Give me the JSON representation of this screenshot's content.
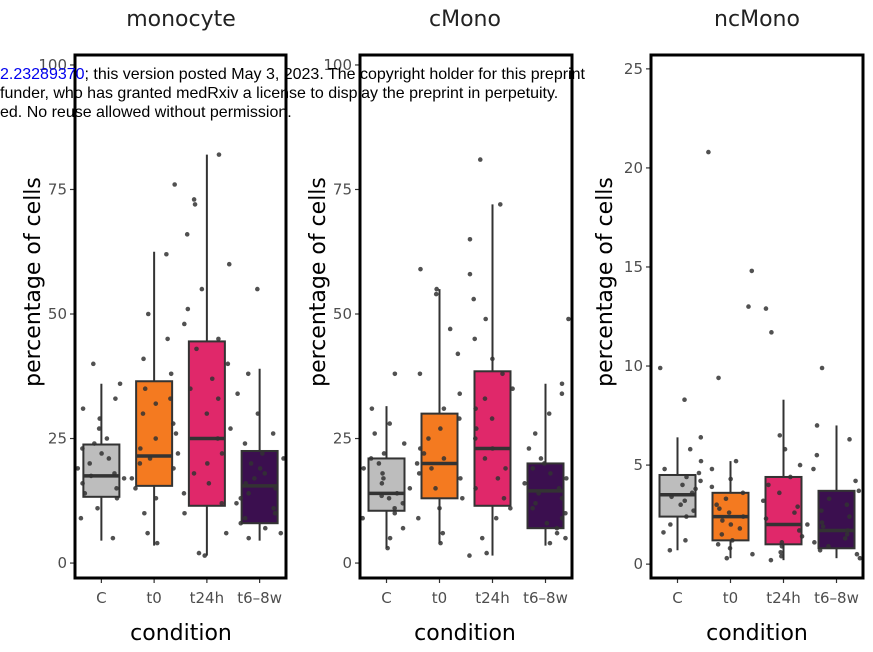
{
  "watermark": {
    "doi_fragment": "2.23289370",
    "line1_rest": "; this version posted May 3, 2023. The copyright holder for this preprint",
    "line2": "funder, who has granted medRxiv a license to display the preprint in perpetuity.",
    "line3": "ed. No reuse allowed without permission."
  },
  "colors": {
    "C": "#bdbdbd",
    "t0": "#f47a20",
    "t24h": "#e0286a",
    "t6-8w": "#3b0f4f",
    "points": "#333333",
    "frame": "#000000"
  },
  "chart_data": [
    {
      "type": "box",
      "title": "monocyte",
      "xlabel": "condition",
      "ylabel": "percentage of cells",
      "categories": [
        "C",
        "t0",
        "t24h",
        "t6–8w"
      ],
      "ylim": [
        -3,
        102
      ],
      "yticks": [
        0,
        25,
        50,
        75,
        100
      ],
      "boxes": [
        {
          "min": 4.5,
          "q1": 13.3,
          "median": 17.5,
          "q3": 23.8,
          "max": 36.0
        },
        {
          "min": 3.5,
          "q1": 15.5,
          "median": 21.5,
          "q3": 36.5,
          "max": 62.5
        },
        {
          "min": 1.5,
          "q1": 11.5,
          "median": 25.0,
          "q3": 44.5,
          "max": 82.0
        },
        {
          "min": 4.5,
          "q1": 8.0,
          "median": 15.5,
          "q3": 22.5,
          "max": 39.0
        }
      ],
      "points": [
        [
          5,
          9,
          11,
          13,
          14,
          15,
          16,
          17,
          17.5,
          18,
          19,
          20,
          21,
          22,
          23,
          24,
          25,
          27,
          29,
          31,
          33,
          36,
          40
        ],
        [
          4,
          6,
          10,
          13,
          15,
          17,
          19,
          20,
          21,
          22,
          23,
          25,
          26,
          28,
          30,
          32,
          33,
          35,
          38,
          41,
          45,
          50,
          62,
          76
        ],
        [
          1.5,
          2,
          6,
          10,
          12,
          14,
          16,
          18,
          20,
          22,
          25,
          27,
          30,
          33,
          35,
          37,
          40,
          43,
          45,
          48,
          51,
          55,
          60,
          66,
          72,
          73,
          82
        ],
        [
          5,
          6,
          7,
          8,
          9,
          10,
          11,
          12,
          13,
          14,
          15,
          16,
          17,
          18,
          19,
          20,
          21,
          22,
          24,
          26,
          30,
          34,
          38,
          55
        ]
      ]
    },
    {
      "type": "box",
      "title": "cMono",
      "xlabel": "condition",
      "ylabel": "percentage of cells",
      "categories": [
        "C",
        "t0",
        "t24h",
        "t6–8w"
      ],
      "ylim": [
        -3,
        102
      ],
      "yticks": [
        0,
        25,
        50,
        75,
        100
      ],
      "boxes": [
        {
          "min": 3.0,
          "q1": 10.5,
          "median": 14.0,
          "q3": 21.0,
          "max": 31.5
        },
        {
          "min": 4.0,
          "q1": 13.0,
          "median": 20.0,
          "q3": 30.0,
          "max": 55.0
        },
        {
          "min": 1.5,
          "q1": 11.5,
          "median": 23.0,
          "q3": 38.5,
          "max": 72.0
        },
        {
          "min": 3.5,
          "q1": 7.0,
          "median": 14.5,
          "q3": 20.0,
          "max": 36.0
        }
      ],
      "points": [
        [
          3,
          5,
          7,
          9,
          10,
          11,
          12,
          13,
          13.5,
          14,
          15,
          16,
          17,
          18,
          19,
          20,
          21,
          22,
          24,
          26,
          28,
          31,
          38
        ],
        [
          4,
          6,
          9,
          11,
          13,
          15,
          17,
          18,
          19,
          20,
          21,
          22,
          23,
          25,
          27,
          29,
          31,
          34,
          38,
          42,
          47,
          54,
          55,
          59
        ],
        [
          1.5,
          2,
          5,
          9,
          11,
          13,
          15,
          17,
          19,
          21,
          23,
          25,
          27,
          29,
          31,
          33,
          35,
          38,
          41,
          45,
          49,
          53,
          58,
          65,
          72,
          81
        ],
        [
          4,
          5,
          6,
          7,
          8,
          9,
          10,
          11,
          12,
          13,
          14,
          15,
          16,
          17,
          18,
          19,
          20,
          21,
          23,
          26,
          30,
          34,
          36,
          49
        ]
      ]
    },
    {
      "type": "box",
      "title": "ncMono",
      "xlabel": "condition",
      "ylabel": "percentage of cells",
      "categories": [
        "C",
        "t0",
        "t24h",
        "t6–8w"
      ],
      "ylim": [
        -0.7,
        25.7
      ],
      "yticks": [
        0,
        5,
        10,
        15,
        20,
        25
      ],
      "boxes": [
        {
          "min": 0.7,
          "q1": 2.4,
          "median": 3.5,
          "q3": 4.5,
          "max": 6.4
        },
        {
          "min": 0.3,
          "q1": 1.2,
          "median": 2.4,
          "q3": 3.6,
          "max": 5.2
        },
        {
          "min": 0.2,
          "q1": 1.0,
          "median": 2.0,
          "q3": 4.4,
          "max": 8.3
        },
        {
          "min": 0.3,
          "q1": 0.8,
          "median": 1.7,
          "q3": 3.7,
          "max": 7.0
        }
      ],
      "points": [
        [
          0.7,
          1.2,
          1.6,
          2.0,
          2.4,
          2.7,
          3.0,
          3.2,
          3.4,
          3.6,
          3.8,
          4.0,
          4.2,
          4.4,
          4.6,
          4.8,
          5.2,
          5.8,
          6.4,
          8.3,
          9.9
        ],
        [
          0.3,
          0.5,
          0.8,
          1.0,
          1.2,
          1.5,
          1.8,
          2.0,
          2.2,
          2.4,
          2.6,
          2.8,
          3.0,
          3.3,
          3.6,
          3.9,
          4.3,
          4.8,
          5.2,
          9.4,
          13.0,
          14.8,
          20.8
        ],
        [
          0.2,
          0.4,
          0.6,
          0.9,
          1.1,
          1.4,
          1.7,
          2.0,
          2.3,
          2.6,
          2.9,
          3.2,
          3.6,
          4.0,
          4.4,
          5.0,
          5.8,
          6.5,
          11.7,
          12.9
        ],
        [
          0.3,
          0.5,
          0.7,
          0.9,
          1.1,
          1.3,
          1.5,
          1.7,
          1.9,
          2.1,
          2.4,
          2.7,
          3.0,
          3.3,
          3.7,
          4.2,
          4.8,
          5.5,
          6.3,
          7.0,
          9.9
        ]
      ]
    }
  ]
}
